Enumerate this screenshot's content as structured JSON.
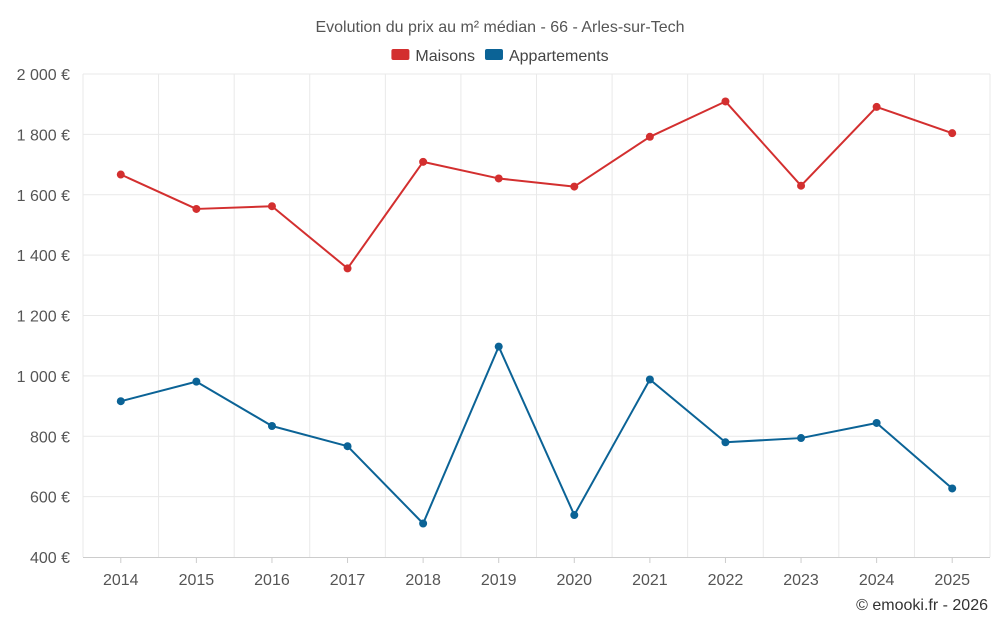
{
  "chart_data": {
    "type": "line",
    "title": "Evolution du prix au m² médian - 66 - Arles-sur-Tech",
    "categories": [
      "2014",
      "2015",
      "2016",
      "2017",
      "2018",
      "2019",
      "2020",
      "2021",
      "2022",
      "2023",
      "2024",
      "2025"
    ],
    "series": [
      {
        "name": "Maisons",
        "color": "#d32f2f",
        "values": [
          1667,
          1553,
          1562,
          1356,
          1709,
          1654,
          1627,
          1792,
          1909,
          1630,
          1891,
          1804
        ]
      },
      {
        "name": "Appartements",
        "color": "#0b6396",
        "values": [
          916,
          981,
          834,
          767,
          511,
          1097,
          539,
          988,
          780,
          794,
          844,
          627
        ]
      }
    ],
    "y_ticks": [
      400,
      600,
      800,
      1000,
      1200,
      1400,
      1600,
      1800,
      2000
    ],
    "y_tick_labels": [
      "400 €",
      "600 €",
      "800 €",
      "1 000 €",
      "1 200 €",
      "1 400 €",
      "1 600 €",
      "1 800 €",
      "2 000 €"
    ],
    "ylim": [
      400,
      2000
    ],
    "xlabel": "",
    "ylabel": "",
    "legend_position": "top-center",
    "grid": true
  },
  "credit": "© emooki.fr - 2026"
}
